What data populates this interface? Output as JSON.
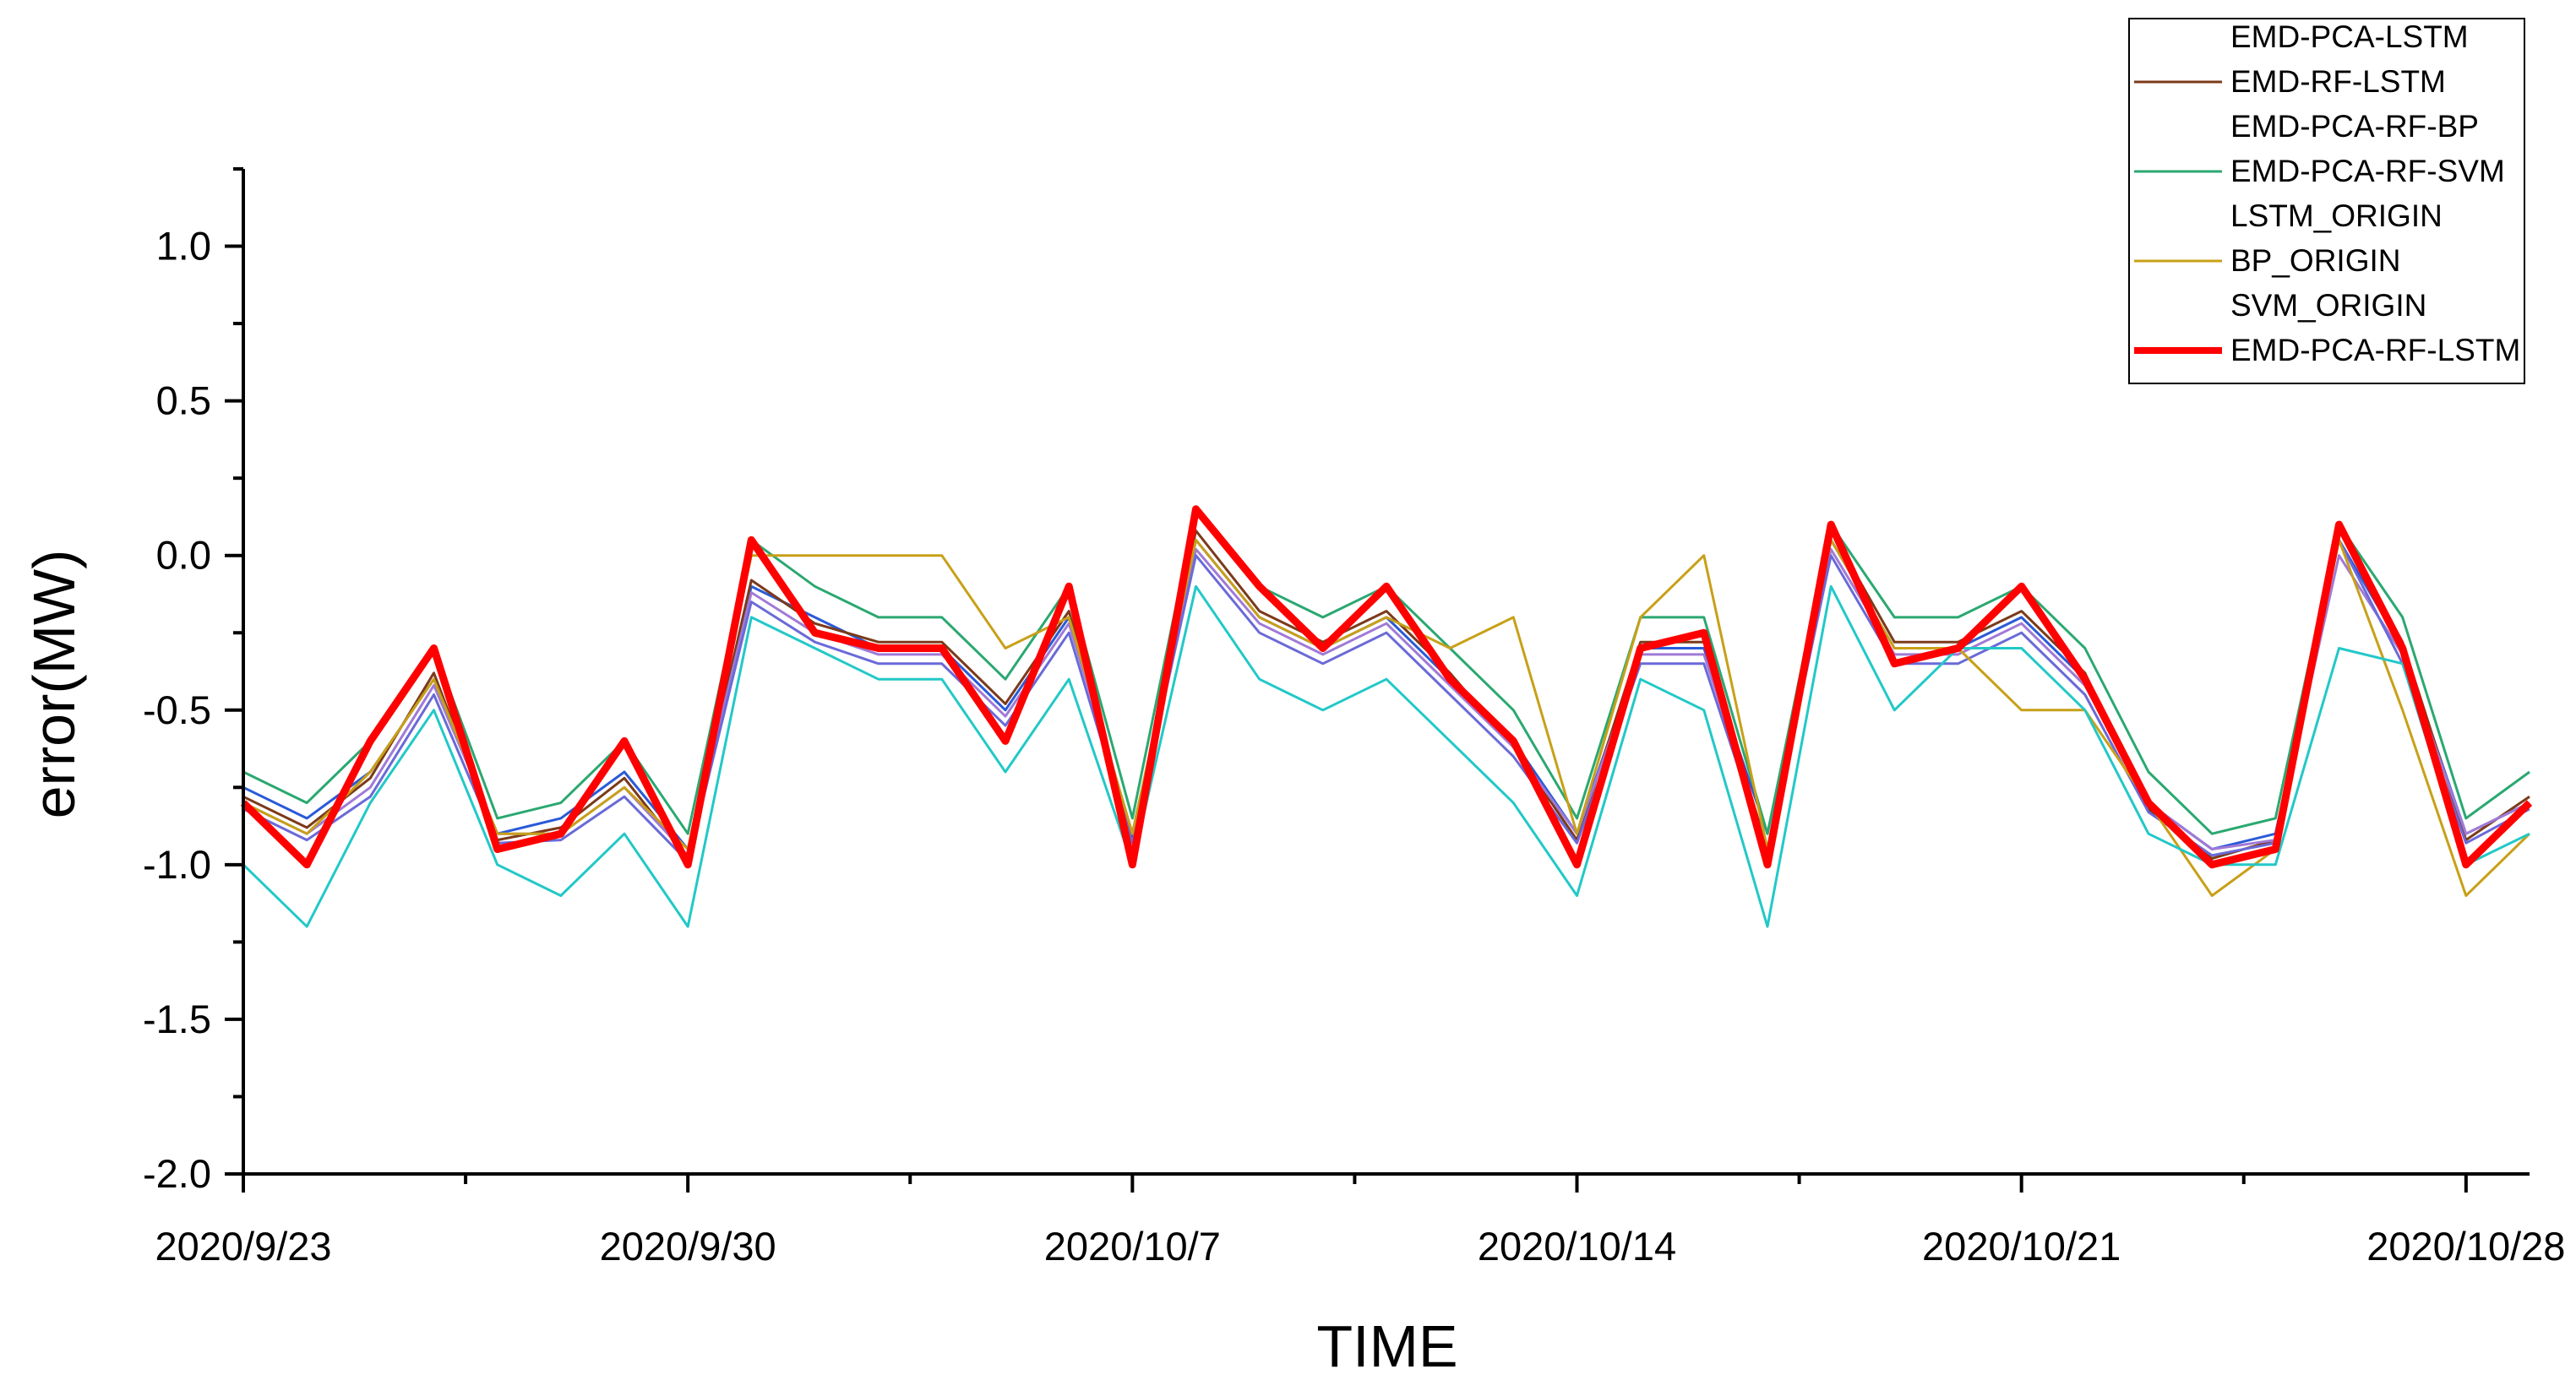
{
  "chart_data": {
    "type": "line",
    "title": "",
    "xlabel": "TIME",
    "ylabel": "error(MW)",
    "x_start": "2020/9/23",
    "x_end": "2020/10/29",
    "x_ticks": [
      "2020/9/23",
      "2020/9/30",
      "2020/10/7",
      "2020/10/14",
      "2020/10/21",
      "2020/10/28"
    ],
    "ylim": [
      -2.0,
      1.25
    ],
    "y_ticks": [
      1.0,
      0.5,
      0.0,
      -0.5,
      -1.0,
      -1.5,
      -2.0
    ],
    "y_tick_labels": [
      "1.0",
      "0.5",
      "0.0",
      "-0.5",
      "-1.0",
      "-1.5",
      "-2.0"
    ],
    "legend_position": "top-right",
    "grid": false,
    "series_key": {
      "dates": [
        "2020/9/23",
        "2020/9/24",
        "2020/9/25",
        "2020/9/26",
        "2020/9/27",
        "2020/9/28",
        "2020/9/29",
        "2020/9/30",
        "2020/10/1",
        "2020/10/2",
        "2020/10/3",
        "2020/10/4",
        "2020/10/5",
        "2020/10/6",
        "2020/10/7",
        "2020/10/8",
        "2020/10/9",
        "2020/10/10",
        "2020/10/11",
        "2020/10/12",
        "2020/10/13",
        "2020/10/14",
        "2020/10/15",
        "2020/10/16",
        "2020/10/17",
        "2020/10/18",
        "2020/10/19",
        "2020/10/20",
        "2020/10/21",
        "2020/10/22",
        "2020/10/23",
        "2020/10/24",
        "2020/10/25",
        "2020/10/26",
        "2020/10/27",
        "2020/10/28",
        "2020/10/29"
      ]
    },
    "series": [
      {
        "name": "EMD-PCA-LSTM",
        "color": "#2a5ad8",
        "values": [
          -0.75,
          -0.85,
          -0.7,
          -0.4,
          -0.9,
          -0.85,
          -0.7,
          -0.95,
          -0.1,
          -0.2,
          -0.3,
          -0.3,
          -0.5,
          -0.2,
          -0.9,
          0.05,
          -0.2,
          -0.3,
          -0.2,
          -0.4,
          -0.6,
          -0.9,
          -0.3,
          -0.3,
          -0.9,
          0.05,
          -0.3,
          -0.3,
          -0.2,
          -0.4,
          -0.8,
          -0.95,
          -0.9,
          0.05,
          -0.3,
          -0.9,
          -0.8
        ]
      },
      {
        "name": "EMD-RF-LSTM",
        "color": "#7b3a1a",
        "values": [
          -0.78,
          -0.88,
          -0.72,
          -0.38,
          -0.92,
          -0.88,
          -0.72,
          -0.98,
          -0.08,
          -0.22,
          -0.28,
          -0.28,
          -0.48,
          -0.18,
          -0.92,
          0.08,
          -0.18,
          -0.28,
          -0.18,
          -0.38,
          -0.62,
          -0.92,
          -0.28,
          -0.28,
          -0.95,
          0.08,
          -0.28,
          -0.28,
          -0.18,
          -0.38,
          -0.82,
          -0.98,
          -0.92,
          0.1,
          -0.28,
          -0.92,
          -0.78
        ]
      },
      {
        "name": "EMD-PCA-RF-BP",
        "color": "#a07ad6",
        "values": [
          -0.8,
          -0.9,
          -0.75,
          -0.42,
          -0.9,
          -0.9,
          -0.75,
          -0.97,
          -0.12,
          -0.25,
          -0.32,
          -0.32,
          -0.52,
          -0.22,
          -0.9,
          0.02,
          -0.22,
          -0.32,
          -0.22,
          -0.42,
          -0.62,
          -0.9,
          -0.32,
          -0.32,
          -0.95,
          0.02,
          -0.32,
          -0.32,
          -0.22,
          -0.42,
          -0.8,
          -0.95,
          -0.92,
          0.0,
          -0.32,
          -0.9,
          -0.8
        ]
      },
      {
        "name": "EMD-PCA-RF-SVM",
        "color": "#2aa870",
        "values": [
          -0.7,
          -0.8,
          -0.6,
          -0.3,
          -0.85,
          -0.8,
          -0.6,
          -0.9,
          0.05,
          -0.1,
          -0.2,
          -0.2,
          -0.4,
          -0.1,
          -0.85,
          0.15,
          -0.1,
          -0.2,
          -0.1,
          -0.3,
          -0.5,
          -0.85,
          -0.2,
          -0.2,
          -0.9,
          0.1,
          -0.2,
          -0.2,
          -0.1,
          -0.3,
          -0.7,
          -0.9,
          -0.85,
          0.1,
          -0.2,
          -0.85,
          -0.7
        ]
      },
      {
        "name": "LSTM_ORIGIN",
        "color": "#6a6ad8",
        "values": [
          -0.82,
          -0.92,
          -0.78,
          -0.45,
          -0.93,
          -0.92,
          -0.78,
          -0.99,
          -0.15,
          -0.28,
          -0.35,
          -0.35,
          -0.55,
          -0.25,
          -0.93,
          0.0,
          -0.25,
          -0.35,
          -0.25,
          -0.45,
          -0.65,
          -0.93,
          -0.35,
          -0.35,
          -0.97,
          0.0,
          -0.35,
          -0.35,
          -0.25,
          -0.45,
          -0.83,
          -0.97,
          -0.93,
          0.05,
          -0.35,
          -0.93,
          -0.82
        ]
      },
      {
        "name": "BP_ORIGIN",
        "color": "#c8a018",
        "values": [
          -0.8,
          -0.9,
          -0.7,
          -0.4,
          -0.9,
          -0.9,
          -0.75,
          -0.95,
          0.0,
          0.0,
          0.0,
          0.0,
          -0.3,
          -0.2,
          -0.9,
          0.05,
          -0.2,
          -0.3,
          -0.2,
          -0.3,
          -0.2,
          -0.9,
          -0.2,
          0.0,
          -0.95,
          0.05,
          -0.3,
          -0.3,
          -0.5,
          -0.5,
          -0.8,
          -1.1,
          -0.95,
          0.05,
          -0.5,
          -1.1,
          -0.9
        ]
      },
      {
        "name": "SVM_ORIGIN",
        "color": "#22c8c8",
        "values": [
          -1.0,
          -1.2,
          -0.8,
          -0.5,
          -1.0,
          -1.1,
          -0.9,
          -1.2,
          -0.2,
          -0.3,
          -0.4,
          -0.4,
          -0.7,
          -0.4,
          -1.0,
          -0.1,
          -0.4,
          -0.5,
          -0.4,
          -0.6,
          -0.8,
          -1.1,
          -0.4,
          -0.5,
          -1.2,
          -0.1,
          -0.5,
          -0.3,
          -0.3,
          -0.5,
          -0.9,
          -1.0,
          -1.0,
          -0.3,
          -0.35,
          -1.0,
          -0.9
        ]
      },
      {
        "name": "EMD-PCA-RF-LSTM",
        "color": "#ff0000",
        "values": [
          -0.8,
          -1.0,
          -0.6,
          -0.3,
          -0.95,
          -0.9,
          -0.6,
          -1.0,
          0.05,
          -0.25,
          -0.3,
          -0.3,
          -0.6,
          -0.1,
          -1.0,
          0.15,
          -0.1,
          -0.3,
          -0.1,
          -0.4,
          -0.6,
          -1.0,
          -0.3,
          -0.25,
          -1.0,
          0.1,
          -0.35,
          -0.3,
          -0.1,
          -0.4,
          -0.8,
          -1.0,
          -0.95,
          0.1,
          -0.3,
          -1.0,
          -0.8
        ]
      }
    ]
  }
}
